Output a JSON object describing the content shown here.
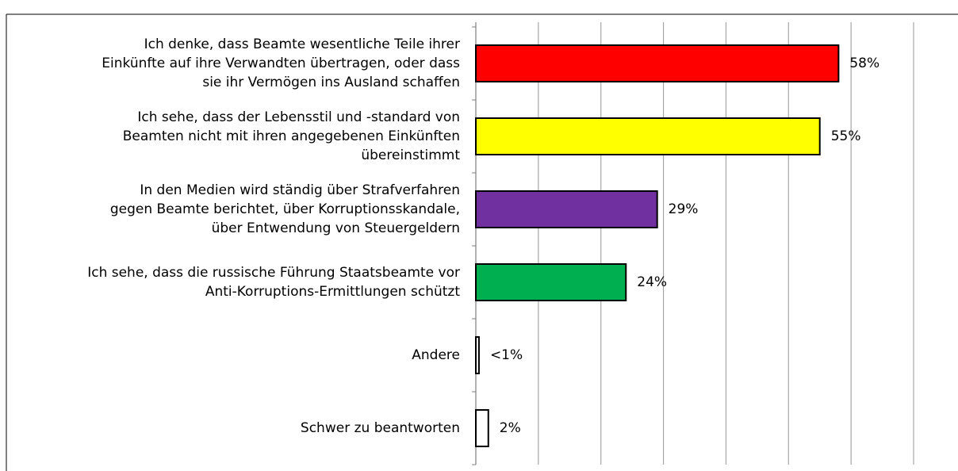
{
  "chart_data": {
    "type": "bar",
    "orientation": "horizontal",
    "categories": [
      "Ich denke, dass Beamte wesentliche Teile ihrer\nEinkünfte auf ihre Verwandten übertragen, oder dass\nsie ihr Vermögen ins Ausland schaffen",
      "Ich sehe, dass der Lebensstil und -standard von\nBeamten nicht mit ihren angegebenen Einkünften\nübereinstimmt",
      "In den Medien wird ständig über Strafverfahren\ngegen Beamte berichtet, über Korruptionsskandale,\nüber Entwendung von Steuergeldern",
      "Ich sehe, dass die russische Führung Staatsbeamte vor\nAnti-Korruptions-Ermittlungen schützt",
      "Andere",
      "Schwer zu beantworten"
    ],
    "values": [
      58,
      55,
      29,
      24,
      0.5,
      2
    ],
    "value_labels": [
      "58%",
      "55%",
      "29%",
      "24%",
      "<1%",
      "2%"
    ],
    "colors": [
      "#ff0000",
      "#ffff00",
      "#7030a0",
      "#00b050",
      "#ffffff",
      "#ffffff"
    ],
    "xlim": [
      0,
      70
    ],
    "xticks": [
      0,
      10,
      20,
      30,
      40,
      50,
      60,
      70
    ],
    "grid": true
  }
}
